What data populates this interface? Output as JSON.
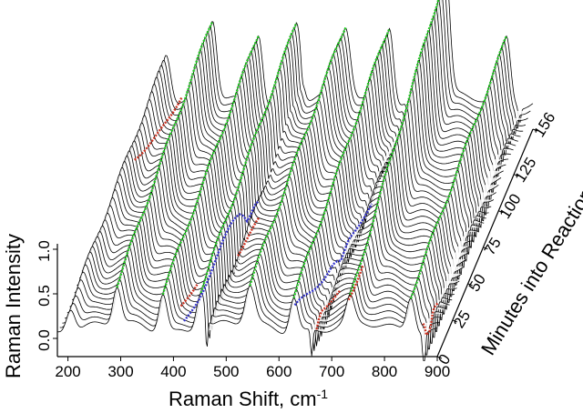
{
  "chart_data": {
    "type": "waterfall-line",
    "xlabel": "Raman Shift, cm",
    "xlabel_superscript": "-1",
    "ylabel": "Raman Intensity",
    "zlabel": "Minutes into Reaction",
    "x_ticks": [
      "200",
      "300",
      "400",
      "500",
      "600",
      "700",
      "800",
      "900"
    ],
    "x_range": [
      180,
      900
    ],
    "y_ticks": [
      "0.0",
      "0.5",
      "1.0"
    ],
    "y_range": [
      0,
      1.4
    ],
    "z_ticks": [
      "0",
      "25",
      "50",
      "75",
      "100",
      "125",
      "156"
    ],
    "z_range": [
      0,
      156
    ],
    "spectrum_count": 40,
    "peaks": [
      {
        "center": 205,
        "width": 12,
        "height": 0.55,
        "growth": 0.5
      },
      {
        "center": 293,
        "width": 11,
        "height": 0.85,
        "growth": 0.5
      },
      {
        "center": 380,
        "width": 11,
        "height": 0.8,
        "growth": 0.45
      },
      {
        "center": 452,
        "width": 12,
        "height": 0.9,
        "growth": 0.5
      },
      {
        "center": 545,
        "width": 13,
        "height": 0.8,
        "growth": 0.45
      },
      {
        "center": 628,
        "width": 11,
        "height": 0.9,
        "growth": 0.55
      },
      {
        "center": 735,
        "width": 11,
        "height": 1.4,
        "growth": 0.8
      },
      {
        "center": 850,
        "width": 11,
        "height": 0.75,
        "growth": 0.45
      }
    ],
    "dips": [
      {
        "center": 463,
        "width": 3,
        "depth": 0.4
      },
      {
        "center": 662,
        "width": 3,
        "depth": 0.3
      },
      {
        "center": 875,
        "width": 3,
        "depth": 0.55
      }
    ],
    "green_tracks": [
      293,
      380,
      452,
      545,
      628,
      735,
      850
    ],
    "blue_tracks": [
      {
        "x": [
          420,
          470
        ],
        "z": [
          0,
          78
        ]
      },
      {
        "x": [
          630,
          683
        ],
        "z": [
          0,
          80
        ]
      }
    ],
    "red_tracks": [
      {
        "x": [
          210,
          235
        ],
        "z": [
          100,
          156
        ]
      },
      {
        "x": [
          400,
          410
        ],
        "z": [
          12,
          30
        ]
      },
      {
        "x": [
          470,
          480
        ],
        "z": [
          45,
          70
        ]
      },
      {
        "x": [
          662,
          690
        ],
        "z": [
          8,
          22
        ]
      },
      {
        "x": [
          718,
          730
        ],
        "z": [
          12,
          25
        ]
      },
      {
        "x": [
          870,
          885
        ],
        "z": [
          3,
          15
        ]
      }
    ],
    "colors": {
      "spectra": "#000000",
      "green_track": "#22cc22",
      "blue_track": "#3333cc",
      "red_track": "#cc3322"
    }
  }
}
